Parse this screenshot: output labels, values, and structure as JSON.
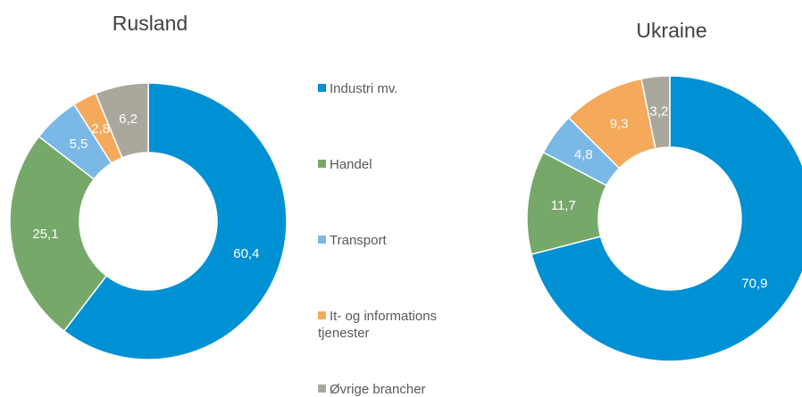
{
  "legend": {
    "categories": [
      "Industri mv.",
      "Handel",
      "Transport",
      "It- og informations tjenester",
      "Øvrige brancher"
    ],
    "colors": [
      "#0090d4",
      "#76a86a",
      "#7ab8e6",
      "#f5a95b",
      "#aaa79c"
    ]
  },
  "chart_data": [
    {
      "type": "donut",
      "title": "Rusland",
      "values": [
        60.4,
        25.1,
        5.5,
        2.8,
        6.2
      ],
      "value_labels": [
        "60,4",
        "25,1",
        "5,5",
        "2,8",
        "6,2"
      ]
    },
    {
      "type": "donut",
      "title": "Ukraine",
      "values": [
        70.9,
        11.7,
        4.8,
        9.3,
        3.2
      ],
      "value_labels": [
        "70,9",
        "11,7",
        "4,8",
        "9,3",
        "3,2"
      ]
    }
  ]
}
